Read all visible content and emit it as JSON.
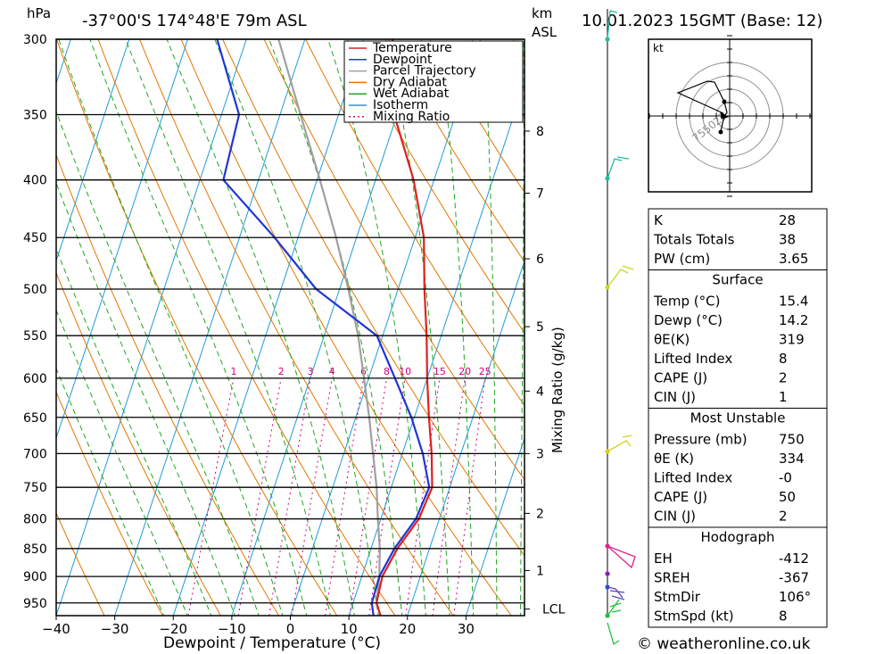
{
  "header": {
    "pressure_unit": "hPa",
    "location": "-37°00'S  174°48'E  79m  ASL",
    "height_unit": "km",
    "height_unit_sub": "ASL",
    "datetime": "10.01.2023  15GMT  (Base: 12)"
  },
  "footer": {
    "copyright": "© weatheronline.co.uk"
  },
  "colors": {
    "temperature": "#e0201f",
    "dewpoint": "#1f36d6",
    "parcel": "#a0a0a0",
    "dry_adiabat": "#e07800",
    "wet_adiabat": "#1fa81f",
    "isotherm": "#1e9bd7",
    "mixing_ratio": "#d0007f"
  },
  "chart_data": {
    "type": "line",
    "title": "",
    "xlabel": "Dewpoint / Temperature (°C)",
    "ylabel": "",
    "secondary_ylabel": "Mixing Ratio (g/kg)",
    "xlim": [
      -40,
      40
    ],
    "ylim_hpa": [
      975,
      300
    ],
    "x_ticks": [
      -40,
      -30,
      -20,
      -10,
      0,
      10,
      20,
      30
    ],
    "pressure_ticks": [
      300,
      350,
      400,
      450,
      500,
      550,
      600,
      650,
      700,
      750,
      800,
      850,
      900,
      950
    ],
    "km_ticks": [
      {
        "label": "8",
        "p": 362
      },
      {
        "label": "7",
        "p": 411
      },
      {
        "label": "6",
        "p": 470
      },
      {
        "label": "5",
        "p": 540
      },
      {
        "label": "4",
        "p": 616
      },
      {
        "label": "3",
        "p": 700
      },
      {
        "label": "2",
        "p": 791
      },
      {
        "label": "1",
        "p": 889
      },
      {
        "label": "LCL",
        "p": 962
      }
    ],
    "mixing_ratio_labels": [
      "1",
      "2",
      "3",
      "4",
      "6",
      "8",
      "10",
      "15",
      "20",
      "25"
    ],
    "mixing_ratio_values": [
      1,
      2,
      3,
      4,
      6,
      8,
      10,
      15,
      20,
      25
    ],
    "legend": {
      "placement": "top-right",
      "items": [
        "Temperature",
        "Dewpoint",
        "Parcel Trajectory",
        "Dry Adiabat",
        "Wet Adiabat",
        "Isotherm",
        "Mixing Ratio"
      ]
    },
    "series": [
      {
        "name": "Temperature",
        "points": [
          [
            15.4,
            975
          ],
          [
            14,
            950
          ],
          [
            13.5,
            900
          ],
          [
            14.5,
            850
          ],
          [
            16.5,
            800
          ],
          [
            17,
            750
          ],
          [
            15,
            700
          ],
          [
            12.5,
            650
          ],
          [
            10,
            600
          ],
          [
            7.5,
            550
          ],
          [
            4.5,
            500
          ],
          [
            1.5,
            450
          ],
          [
            -3.5,
            400
          ],
          [
            -10.5,
            350
          ],
          [
            -15,
            300
          ]
        ]
      },
      {
        "name": "Dewpoint",
        "points": [
          [
            14.2,
            975
          ],
          [
            13.2,
            950
          ],
          [
            13,
            900
          ],
          [
            14,
            850
          ],
          [
            16,
            800
          ],
          [
            16.5,
            750
          ],
          [
            13.5,
            700
          ],
          [
            9.5,
            650
          ],
          [
            4.5,
            600
          ],
          [
            -1,
            550
          ],
          [
            -14,
            500
          ],
          [
            -24,
            450
          ],
          [
            -36,
            400
          ],
          [
            -37,
            350
          ],
          [
            -45,
            300
          ]
        ]
      },
      {
        "name": "Parcel Trajectory",
        "points": [
          [
            15.4,
            975
          ],
          [
            14,
            950
          ],
          [
            13,
            900
          ],
          [
            11.5,
            850
          ],
          [
            9.5,
            800
          ],
          [
            7.5,
            750
          ],
          [
            5,
            700
          ],
          [
            2.3,
            650
          ],
          [
            -0.8,
            600
          ],
          [
            -4.2,
            550
          ],
          [
            -8.5,
            500
          ],
          [
            -13.5,
            450
          ],
          [
            -19.5,
            400
          ],
          [
            -26.5,
            350
          ],
          [
            -34.5,
            300
          ]
        ]
      }
    ]
  },
  "hodograph": {
    "unit_label": "kt",
    "ring_labels": [
      "25",
      "50",
      "75"
    ]
  },
  "indices": {
    "rows": [
      {
        "label": "K",
        "value": "28"
      },
      {
        "label": "Totals Totals",
        "value": "38"
      },
      {
        "label": "PW (cm)",
        "value": "3.65"
      }
    ]
  },
  "surface": {
    "title": "Surface",
    "rows": [
      {
        "label": "Temp (°C)",
        "value": "15.4"
      },
      {
        "label": "Dewp (°C)",
        "value": "14.2"
      },
      {
        "label": "θE(K)",
        "value": "319"
      },
      {
        "label": "Lifted Index",
        "value": "8"
      },
      {
        "label": "CAPE (J)",
        "value": "2"
      },
      {
        "label": "CIN (J)",
        "value": "1"
      }
    ]
  },
  "most_unstable": {
    "title": "Most Unstable",
    "rows": [
      {
        "label": "Pressure (mb)",
        "value": "750"
      },
      {
        "label": "θE (K)",
        "value": "334"
      },
      {
        "label": "Lifted Index",
        "value": "-0"
      },
      {
        "label": "CAPE (J)",
        "value": "50"
      },
      {
        "label": "CIN (J)",
        "value": "2"
      }
    ]
  },
  "hodograph_box": {
    "title": "Hodograph",
    "rows": [
      {
        "label": "EH",
        "value": "-412"
      },
      {
        "label": "SREH",
        "value": "-367"
      },
      {
        "label": "StmDir",
        "value": "106°"
      },
      {
        "label": "StmSpd (kt)",
        "value": "8"
      }
    ]
  }
}
